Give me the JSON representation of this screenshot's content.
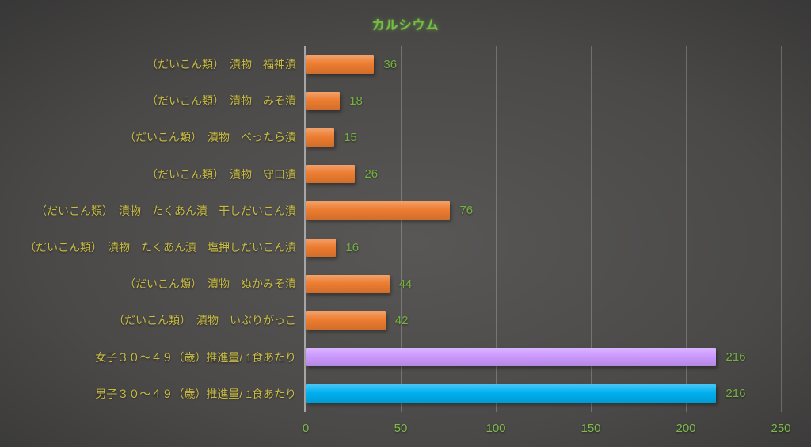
{
  "chart_data": {
    "type": "bar",
    "orientation": "horizontal",
    "title": "カルシウム",
    "categories": [
      "（だいこん類）　漬物　福神漬",
      "（だいこん類）　漬物　みそ漬",
      "（だいこん類）　漬物　べったら漬",
      "（だいこん類）　漬物　守口漬",
      "（だいこん類）　漬物　たくあん漬　干しだいこん漬",
      "（だいこん類）　漬物　たくあん漬　塩押しだいこん漬",
      "（だいこん類）　漬物　ぬかみそ漬",
      "（だいこん類）　漬物　いぶりがっこ",
      "女子３０～４９（歳）推進量/ 1食あたり",
      "男子３０～４９（歳）推進量/ 1食あたり"
    ],
    "values": [
      36,
      18,
      15,
      26,
      76,
      16,
      44,
      42,
      216,
      216
    ],
    "bar_colors": [
      "#ED7D31",
      "#ED7D31",
      "#ED7D31",
      "#ED7D31",
      "#ED7D31",
      "#ED7D31",
      "#ED7D31",
      "#ED7D31",
      "#CC99FF",
      "#00B0F0"
    ],
    "data_labels": [
      "36",
      "18",
      "15",
      "26",
      "76",
      "16",
      "44",
      "42",
      "216",
      "216"
    ],
    "xlim": [
      0,
      250
    ],
    "xticks": [
      "0",
      "50",
      "100",
      "150",
      "200",
      "250"
    ],
    "grid": true,
    "legend": "none"
  },
  "colors": {
    "title_text": "#76be43",
    "category_text": "#c9bc42",
    "value_text": "#77b041",
    "tick_text": "#7fbc4c",
    "axis_line": "#a6a6a6",
    "orange_bar": "#ED7D31",
    "purple_bar": "#CC99FF",
    "blue_bar": "#00B0F0"
  }
}
